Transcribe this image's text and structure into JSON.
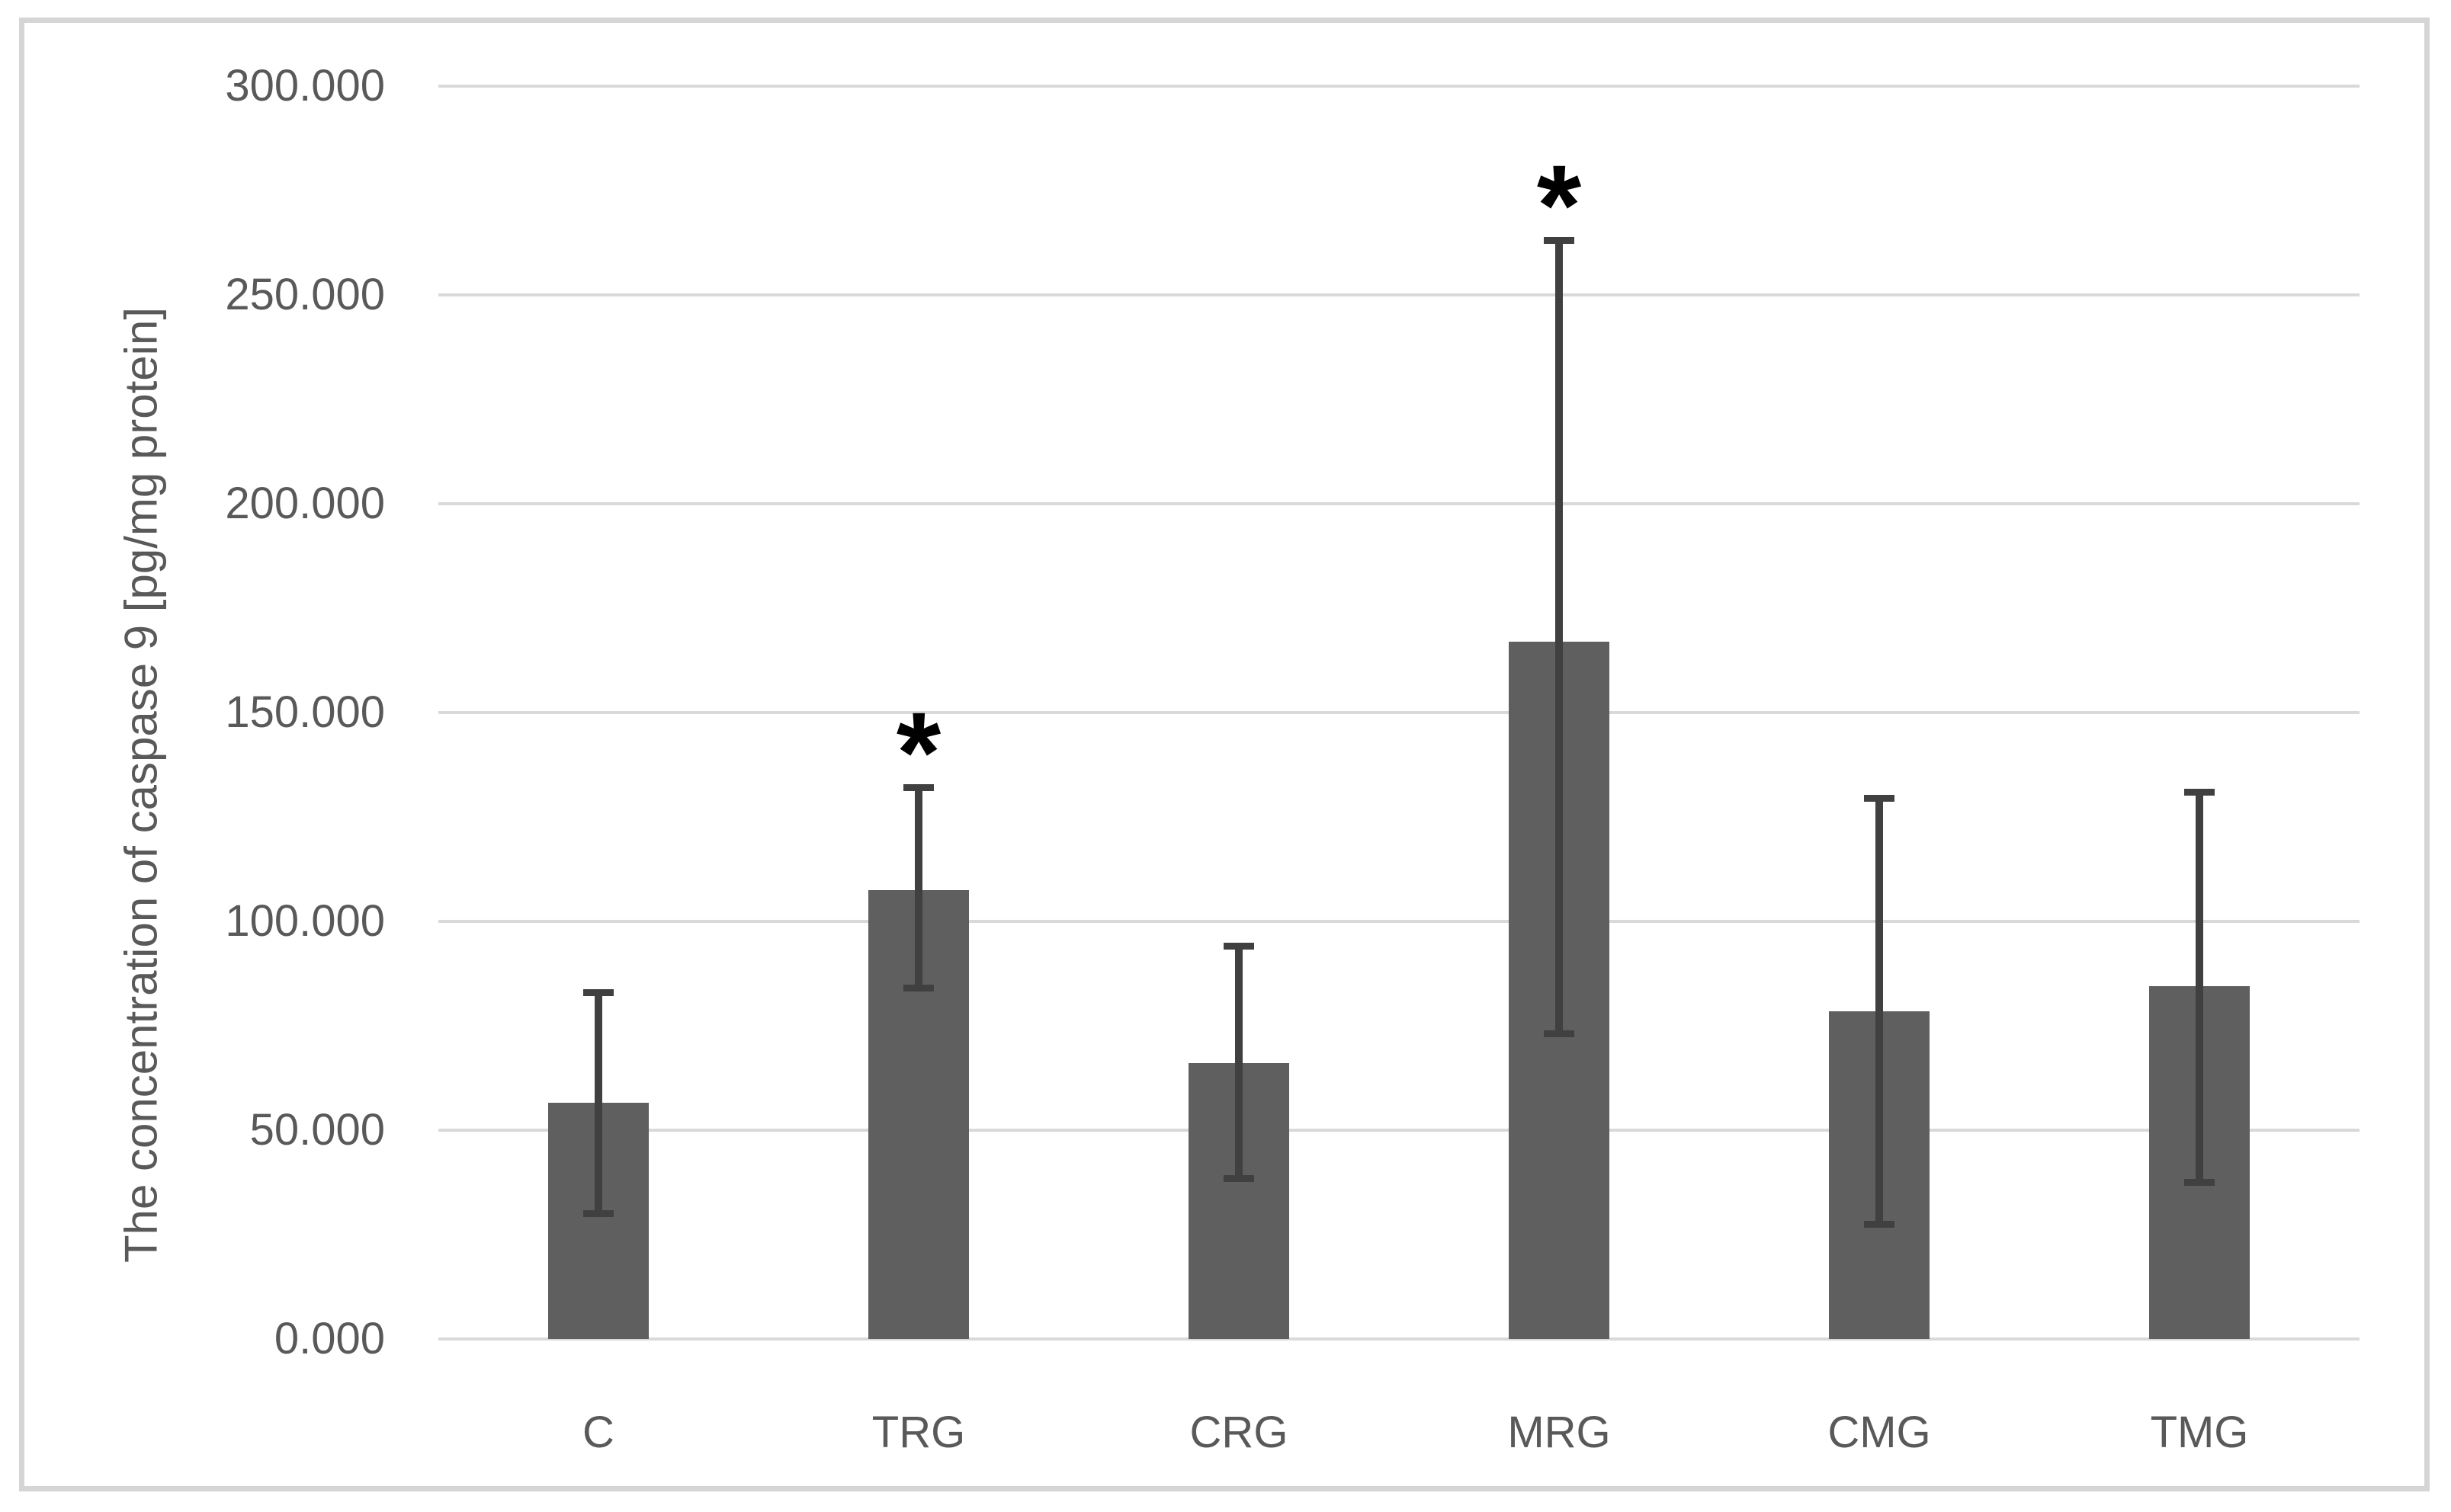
{
  "chart_data": {
    "type": "bar",
    "title": "",
    "xlabel": "",
    "ylabel": "The concentration of caspase 9 [pg/mg protein]",
    "categories": [
      "C",
      "TRG",
      "CRG",
      "MRG",
      "CMG",
      "TMG"
    ],
    "series": [
      {
        "name": "caspase 9 concentration",
        "values": [
          56500,
          107500,
          66000,
          167000,
          78500,
          84500
        ]
      }
    ],
    "error_bars": {
      "upper_cap_values": [
        83000,
        132000,
        94000,
        263000,
        129500,
        131000
      ],
      "lower_cap_values": [
        30000,
        84000,
        38500,
        73000,
        27500,
        37500
      ]
    },
    "significance_markers": [
      "",
      "*",
      "",
      "*",
      "",
      ""
    ],
    "ylim": [
      0,
      300000
    ],
    "yticks": {
      "values": [
        0,
        50000,
        100000,
        150000,
        200000,
        250000,
        300000
      ],
      "labels": [
        "0.000",
        "50.000",
        "100.000",
        "150.000",
        "200.000",
        "250.000",
        "300.000"
      ]
    },
    "grid": "horizontal",
    "legend": "none",
    "colors": {
      "bar_fill": "#5f5f5f",
      "error_bar": "#404040",
      "gridline": "#d9d9d9",
      "axis_text": "#595959",
      "marker": "#000000",
      "frame_border": "#d5d5d5",
      "background": "#ffffff"
    }
  }
}
